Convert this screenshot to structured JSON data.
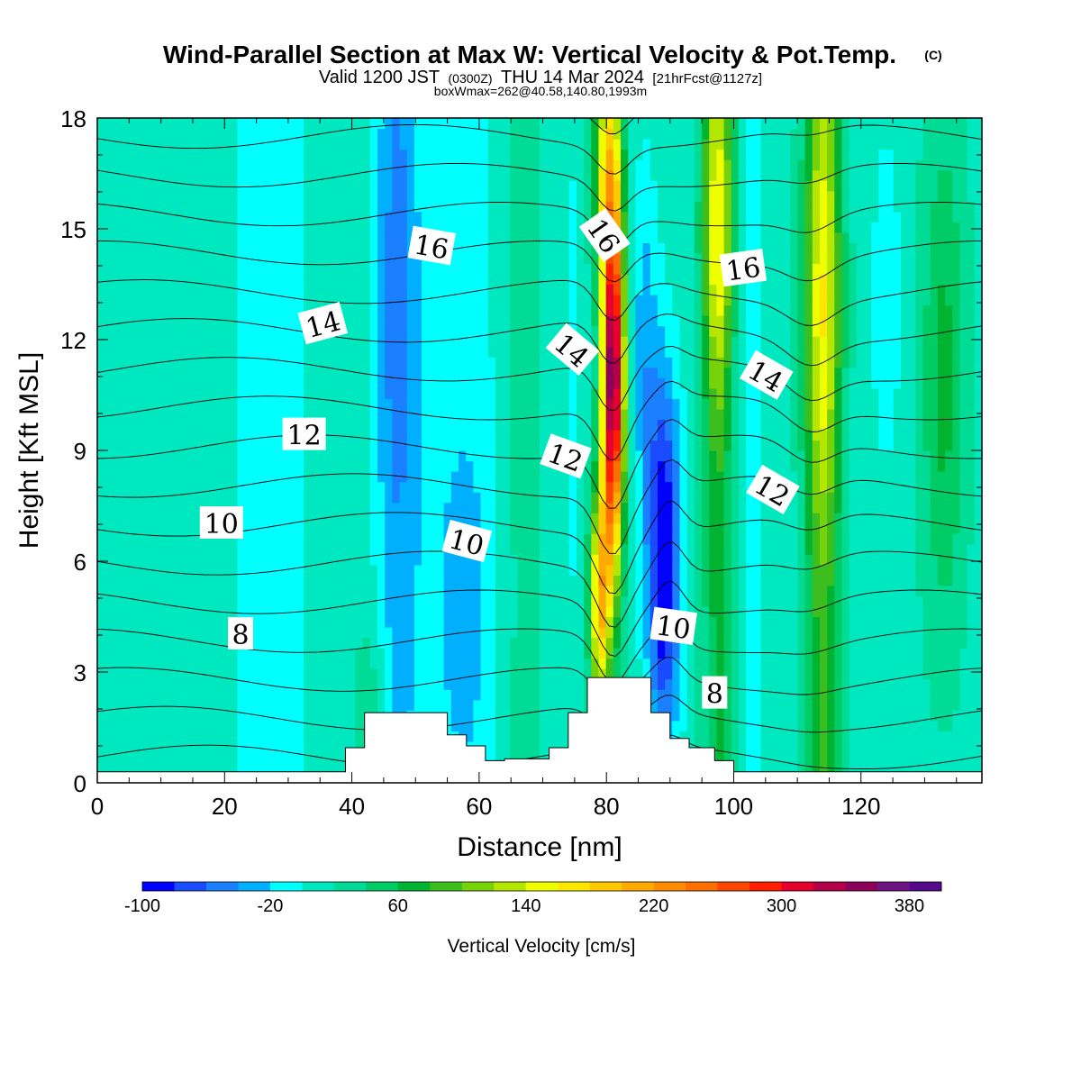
{
  "title": {
    "main": "Wind-Parallel Section at Max W: Vertical Velocity & Pot.Temp.",
    "copyright": "(C)",
    "valid_prefix": "Valid 1200 JST",
    "valid_utc": "(0300Z)",
    "valid_date": "THU 14 Mar 2024",
    "forecast": "[21hrFcst@1127z]",
    "boxmax": "boxWmax=262@40.58,140.80,1993m"
  },
  "chart_data": {
    "type": "heatmap",
    "xlabel": "Distance [nm]",
    "ylabel": "Height [Kft MSL]",
    "xlim": [
      0,
      139
    ],
    "ylim": [
      0,
      18
    ],
    "x_ticks": [
      "0",
      "20",
      "40",
      "60",
      "80",
      "100",
      "120"
    ],
    "y_ticks": [
      "0",
      "3",
      "6",
      "9",
      "12",
      "15",
      "18"
    ],
    "colorbar": {
      "label": "Vertical Velocity [cm/s]",
      "tick_labels": [
        "-100",
        "-20",
        "60",
        "140",
        "220",
        "300",
        "380"
      ],
      "levels": [
        -100,
        -80,
        -60,
        -40,
        -20,
        0,
        20,
        40,
        60,
        80,
        100,
        120,
        140,
        160,
        180,
        200,
        220,
        240,
        260,
        280,
        300,
        320,
        340,
        360,
        380,
        400
      ],
      "colors": [
        "#0000ff",
        "#1a4bff",
        "#1a80ff",
        "#00b0ff",
        "#00ffff",
        "#00e8c0",
        "#00dc96",
        "#00cc66",
        "#00b432",
        "#3cbe1e",
        "#78d20a",
        "#b4e600",
        "#f0ff00",
        "#ffe600",
        "#ffc800",
        "#ffaa00",
        "#ff8c00",
        "#ff6e00",
        "#ff4600",
        "#ff1e00",
        "#e6002d",
        "#b40046",
        "#8c005a",
        "#6e1482",
        "#550a8c"
      ]
    },
    "terrain": [
      [
        0,
        0.3
      ],
      [
        39,
        0.3
      ],
      [
        39,
        0.95
      ],
      [
        42,
        0.95
      ],
      [
        42,
        1.9
      ],
      [
        55,
        1.9
      ],
      [
        55,
        1.3
      ],
      [
        58,
        1.3
      ],
      [
        58,
        1.0
      ],
      [
        61,
        1.0
      ],
      [
        61,
        0.6
      ],
      [
        64,
        0.6
      ],
      [
        64,
        0.65
      ],
      [
        71,
        0.65
      ],
      [
        71,
        0.95
      ],
      [
        74,
        0.95
      ],
      [
        74,
        1.9
      ],
      [
        77,
        1.9
      ],
      [
        77,
        2.85
      ],
      [
        87,
        2.85
      ],
      [
        87,
        1.9
      ],
      [
        90,
        1.9
      ],
      [
        90,
        1.2
      ],
      [
        93,
        1.2
      ],
      [
        93,
        0.95
      ],
      [
        97,
        0.95
      ],
      [
        97,
        0.6
      ],
      [
        100,
        0.6
      ],
      [
        100,
        0.3
      ],
      [
        139,
        0.3
      ]
    ],
    "theta_contour_labels": [
      {
        "text": "16",
        "x": 52.5,
        "y": 14.5,
        "angle": 10
      },
      {
        "text": "14",
        "x": 35.5,
        "y": 12.4,
        "angle": -15
      },
      {
        "text": "12",
        "x": 32.5,
        "y": 9.4,
        "angle": 0
      },
      {
        "text": "10",
        "x": 19.5,
        "y": 7.0,
        "angle": 0
      },
      {
        "text": "8",
        "x": 22.5,
        "y": 4.0,
        "angle": 0
      },
      {
        "text": "10",
        "x": 58.0,
        "y": 6.5,
        "angle": 15
      },
      {
        "text": "12",
        "x": 73.5,
        "y": 8.8,
        "angle": 20
      },
      {
        "text": "14",
        "x": 74.5,
        "y": 11.7,
        "angle": 40
      },
      {
        "text": "16",
        "x": 79.5,
        "y": 14.8,
        "angle": 55
      },
      {
        "text": "10",
        "x": 90.5,
        "y": 4.2,
        "angle": 8
      },
      {
        "text": "8",
        "x": 97.0,
        "y": 2.4,
        "angle": 0
      },
      {
        "text": "16",
        "x": 101.5,
        "y": 13.9,
        "angle": -8
      },
      {
        "text": "14",
        "x": 105.0,
        "y": 11.0,
        "angle": 30
      },
      {
        "text": "12",
        "x": 106.0,
        "y": 7.9,
        "angle": 30
      }
    ]
  }
}
